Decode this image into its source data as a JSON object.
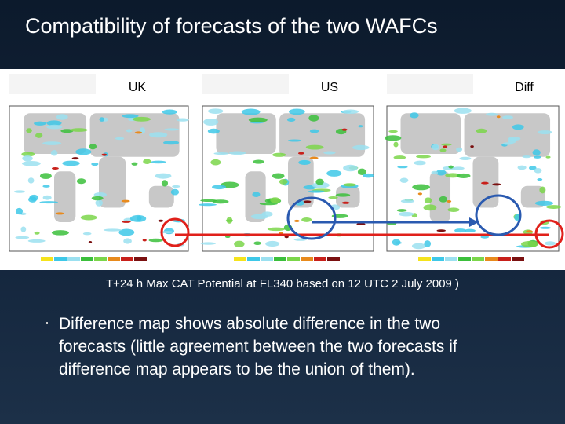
{
  "header": {
    "title": "Compatibility of forecasts of the two WAFCs"
  },
  "figure": {
    "panels": [
      {
        "label": "UK"
      },
      {
        "label": "US"
      },
      {
        "label": "Diff"
      }
    ],
    "caption": "T+24 h Max CAT Potential at FL340 based on 12 UTC 2 July 2009 )"
  },
  "bullets": [
    {
      "lines": [
        "Difference map shows absolute difference in the two",
        "forecasts (little agreement between the two forecasts if",
        "difference map appears to be the union of them)."
      ]
    }
  ]
}
